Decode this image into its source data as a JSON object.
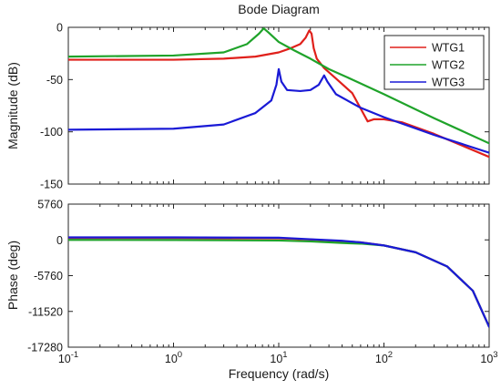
{
  "chart_data": {
    "type": "line",
    "title": "Bode Diagram",
    "xlabel": "Frequency  (rad/s)",
    "xscale": "log",
    "xlim": [
      0.1,
      1000
    ],
    "x_ticks": [
      0.1,
      1,
      10,
      100,
      1000
    ],
    "x_tick_labels": [
      {
        "base": "10",
        "exp": "-1"
      },
      {
        "base": "10",
        "exp": "0"
      },
      {
        "base": "10",
        "exp": "1"
      },
      {
        "base": "10",
        "exp": "2"
      },
      {
        "base": "10",
        "exp": "3"
      }
    ],
    "legend": {
      "placement": "top-right",
      "entries": [
        "WTG1",
        "WTG2",
        "WTG3"
      ]
    },
    "colors": {
      "WTG1": "#e0201b",
      "WTG2": "#1fa32a",
      "WTG3": "#1a1ad6"
    },
    "panels": [
      {
        "name": "magnitude",
        "ylabel": "Magnitude (dB)",
        "ylim": [
          -150,
          0
        ],
        "y_ticks": [
          0,
          -50,
          -100,
          -150
        ],
        "y_tick_labels": [
          "0",
          "-50",
          "-100",
          "-150"
        ],
        "series": [
          {
            "name": "WTG1",
            "points": [
              [
                0.1,
                -31
              ],
              [
                1,
                -31
              ],
              [
                3,
                -30
              ],
              [
                6,
                -28
              ],
              [
                10,
                -24
              ],
              [
                13,
                -20
              ],
              [
                16,
                -16
              ],
              [
                18,
                -10
              ],
              [
                19.5,
                -3
              ],
              [
                20.5,
                -6
              ],
              [
                21.5,
                -20
              ],
              [
                23,
                -30
              ],
              [
                27,
                -39
              ],
              [
                35,
                -49
              ],
              [
                50,
                -63
              ],
              [
                70,
                -90
              ],
              [
                80,
                -88
              ],
              [
                100,
                -88
              ],
              [
                150,
                -91
              ],
              [
                300,
                -102
              ],
              [
                1000,
                -124
              ]
            ]
          },
          {
            "name": "WTG2",
            "points": [
              [
                0.1,
                -28
              ],
              [
                1,
                -27
              ],
              [
                3,
                -24
              ],
              [
                5,
                -16
              ],
              [
                6.5,
                -6
              ],
              [
                7.2,
                -1
              ],
              [
                8,
                -5
              ],
              [
                10,
                -14
              ],
              [
                14,
                -22
              ],
              [
                20,
                -30
              ],
              [
                30,
                -40
              ],
              [
                50,
                -50
              ],
              [
                100,
                -64
              ],
              [
                300,
                -87
              ],
              [
                1000,
                -111
              ]
            ]
          },
          {
            "name": "WTG3",
            "points": [
              [
                0.1,
                -98
              ],
              [
                1,
                -97
              ],
              [
                3,
                -93
              ],
              [
                6,
                -82
              ],
              [
                8.5,
                -70
              ],
              [
                9.5,
                -55
              ],
              [
                10,
                -40
              ],
              [
                10.6,
                -52
              ],
              [
                12,
                -60
              ],
              [
                16,
                -61
              ],
              [
                20,
                -60
              ],
              [
                24,
                -55
              ],
              [
                27,
                -46
              ],
              [
                29,
                -52
              ],
              [
                35,
                -64
              ],
              [
                60,
                -77
              ],
              [
                100,
                -86
              ],
              [
                300,
                -103
              ],
              [
                1000,
                -120
              ]
            ]
          }
        ]
      },
      {
        "name": "phase",
        "ylabel": "Phase (deg)",
        "ylim": [
          -17280,
          5760
        ],
        "y_ticks": [
          5760,
          0,
          -5760,
          -11520,
          -17280
        ],
        "y_tick_labels": [
          "5760",
          "0",
          "-5760",
          "-11520",
          "-17280"
        ],
        "series": [
          {
            "name": "WTG1",
            "points": [
              [
                0.1,
                300
              ],
              [
                1,
                300
              ],
              [
                10,
                250
              ],
              [
                20,
                50
              ],
              [
                40,
                -200
              ],
              [
                60,
                -400
              ],
              [
                100,
                -900
              ],
              [
                200,
                -2000
              ],
              [
                400,
                -4300
              ],
              [
                700,
                -8200
              ],
              [
                1000,
                -14000
              ]
            ]
          },
          {
            "name": "WTG2",
            "points": [
              [
                0.1,
                0
              ],
              [
                1,
                -20
              ],
              [
                10,
                -100
              ],
              [
                20,
                -250
              ],
              [
                40,
                -500
              ],
              [
                60,
                -600
              ],
              [
                100,
                -900
              ],
              [
                200,
                -2000
              ],
              [
                400,
                -4300
              ],
              [
                700,
                -8200
              ],
              [
                1000,
                -14000
              ]
            ]
          },
          {
            "name": "WTG3",
            "points": [
              [
                0.1,
                400
              ],
              [
                1,
                400
              ],
              [
                10,
                350
              ],
              [
                20,
                100
              ],
              [
                40,
                -150
              ],
              [
                60,
                -400
              ],
              [
                100,
                -900
              ],
              [
                200,
                -2000
              ],
              [
                400,
                -4300
              ],
              [
                700,
                -8200
              ],
              [
                1000,
                -14000
              ]
            ]
          }
        ]
      }
    ]
  }
}
